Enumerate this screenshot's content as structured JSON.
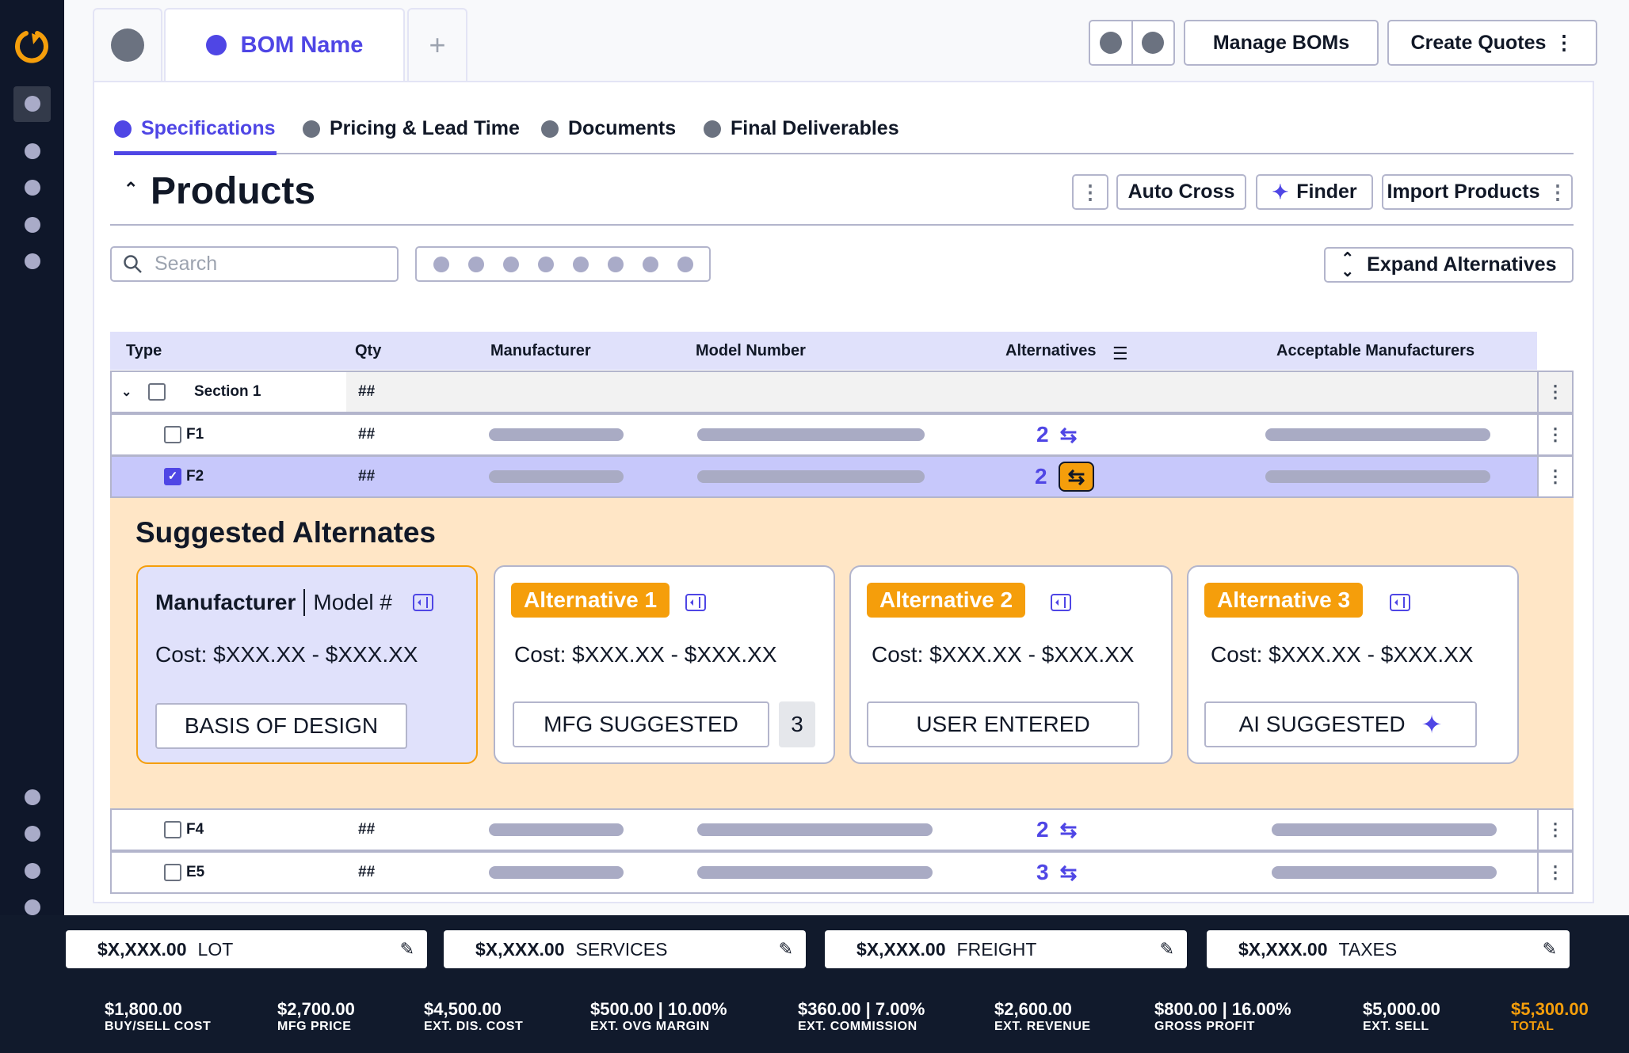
{
  "top_tabs": {
    "bom_name": "BOM Name",
    "add": "+"
  },
  "header_buttons": {
    "manage": "Manage BOMs",
    "create": "Create Quotes"
  },
  "nav_tabs": [
    "Specifications",
    "Pricing & Lead Time",
    "Documents",
    "Final Deliverables"
  ],
  "active_nav_tab": "Specifications",
  "products": {
    "title": "Products",
    "auto_cross": "Auto Cross",
    "finder": "Finder",
    "import": "Import Products",
    "search_placeholder": "Search",
    "expand": "Expand Alternatives"
  },
  "table": {
    "columns": [
      "Type",
      "Qty",
      "Manufacturer",
      "Model Number",
      "Alternatives",
      "Acceptable Manufacturers"
    ],
    "section": {
      "label": "Section 1",
      "qty": "##"
    },
    "rows": [
      {
        "type": "F1",
        "qty": "##",
        "alternatives": "2",
        "checked": false
      },
      {
        "type": "F2",
        "qty": "##",
        "alternatives": "2",
        "checked": true
      },
      {
        "type": "F4",
        "qty": "##",
        "alternatives": "2",
        "checked": false
      },
      {
        "type": "E5",
        "qty": "##",
        "alternatives": "3",
        "checked": false
      }
    ]
  },
  "suggested": {
    "title": "Suggested Alternates",
    "base": {
      "manufacturer": "Manufacturer",
      "model": "Model #",
      "cost": "Cost: $XXX.XX - $XXX.XX",
      "tag": "BASIS OF DESIGN"
    },
    "alternatives": [
      {
        "label": "Alternative 1",
        "cost": "Cost: $XXX.XX - $XXX.XX",
        "tag": "MFG SUGGESTED",
        "count": "3"
      },
      {
        "label": "Alternative 2",
        "cost": "Cost: $XXX.XX - $XXX.XX",
        "tag": "USER ENTERED"
      },
      {
        "label": "Alternative 3",
        "cost": "Cost: $XXX.XX - $XXX.XX",
        "tag": "AI SUGGESTED"
      }
    ]
  },
  "fees": [
    {
      "amount": "$X,XXX.00",
      "label": "LOT"
    },
    {
      "amount": "$X,XXX.00",
      "label": "SERVICES"
    },
    {
      "amount": "$X,XXX.00",
      "label": "FREIGHT"
    },
    {
      "amount": "$X,XXX.00",
      "label": "TAXES"
    }
  ],
  "stats": [
    {
      "value": "$1,800.00",
      "label": "BUY/SELL COST"
    },
    {
      "value": "$2,700.00",
      "label": "MFG PRICE"
    },
    {
      "value": "$4,500.00",
      "label": "EXT. DIS. COST"
    },
    {
      "value": "$500.00 | 10.00%",
      "label": "EXT. OVG MARGIN"
    },
    {
      "value": "$360.00 | 7.00%",
      "label": "EXT. COMMISSION"
    },
    {
      "value": "$2,600.00",
      "label": "EXT. REVENUE"
    },
    {
      "value": "$800.00 | 16.00%",
      "label": "GROSS PROFIT"
    },
    {
      "value": "$5,000.00",
      "label": "EXT. SELL"
    },
    {
      "value": "$5,300.00",
      "label": "TOTAL"
    }
  ],
  "colors": {
    "accent": "#4f46e5",
    "orange": "#f59e0b",
    "sidebar": "#0f172a",
    "suggest_bg": "#ffe6c6",
    "header_bg": "#e0e1fb",
    "selected_row": "#c7c8fb"
  }
}
